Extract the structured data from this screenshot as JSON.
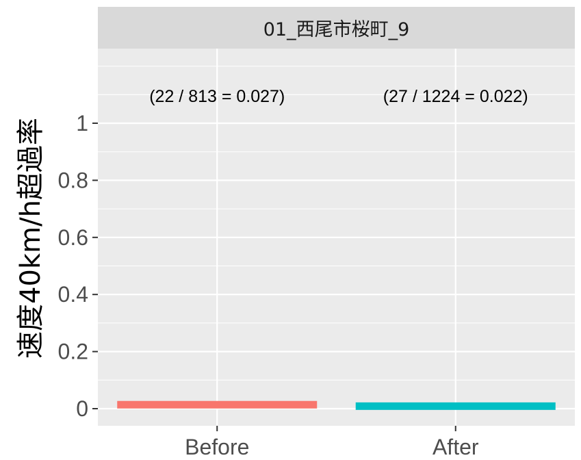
{
  "chart_data": {
    "type": "bar",
    "panel_title": "01_西尾市桜町_9",
    "ylabel": "速度40km/h超過率",
    "xlabel": "",
    "categories": [
      "Before",
      "After"
    ],
    "values": [
      0.027,
      0.022
    ],
    "annotations": [
      "(22 / 813 = 0.027)",
      "(27 / 1224 = 0.022)"
    ],
    "bar_colors": [
      "#F8766D",
      "#00BFC4"
    ],
    "ylim": [
      -0.05,
      1.3
    ],
    "yticks": [
      0,
      0.2,
      0.4,
      0.6,
      0.8,
      1
    ],
    "ytick_labels": [
      "0",
      "0.2",
      "0.4",
      "0.6",
      "0.8",
      "1"
    ],
    "grid": true,
    "panel_background": "#EBEBEB",
    "strip_background": "#D9D9D9",
    "legend": "none"
  }
}
